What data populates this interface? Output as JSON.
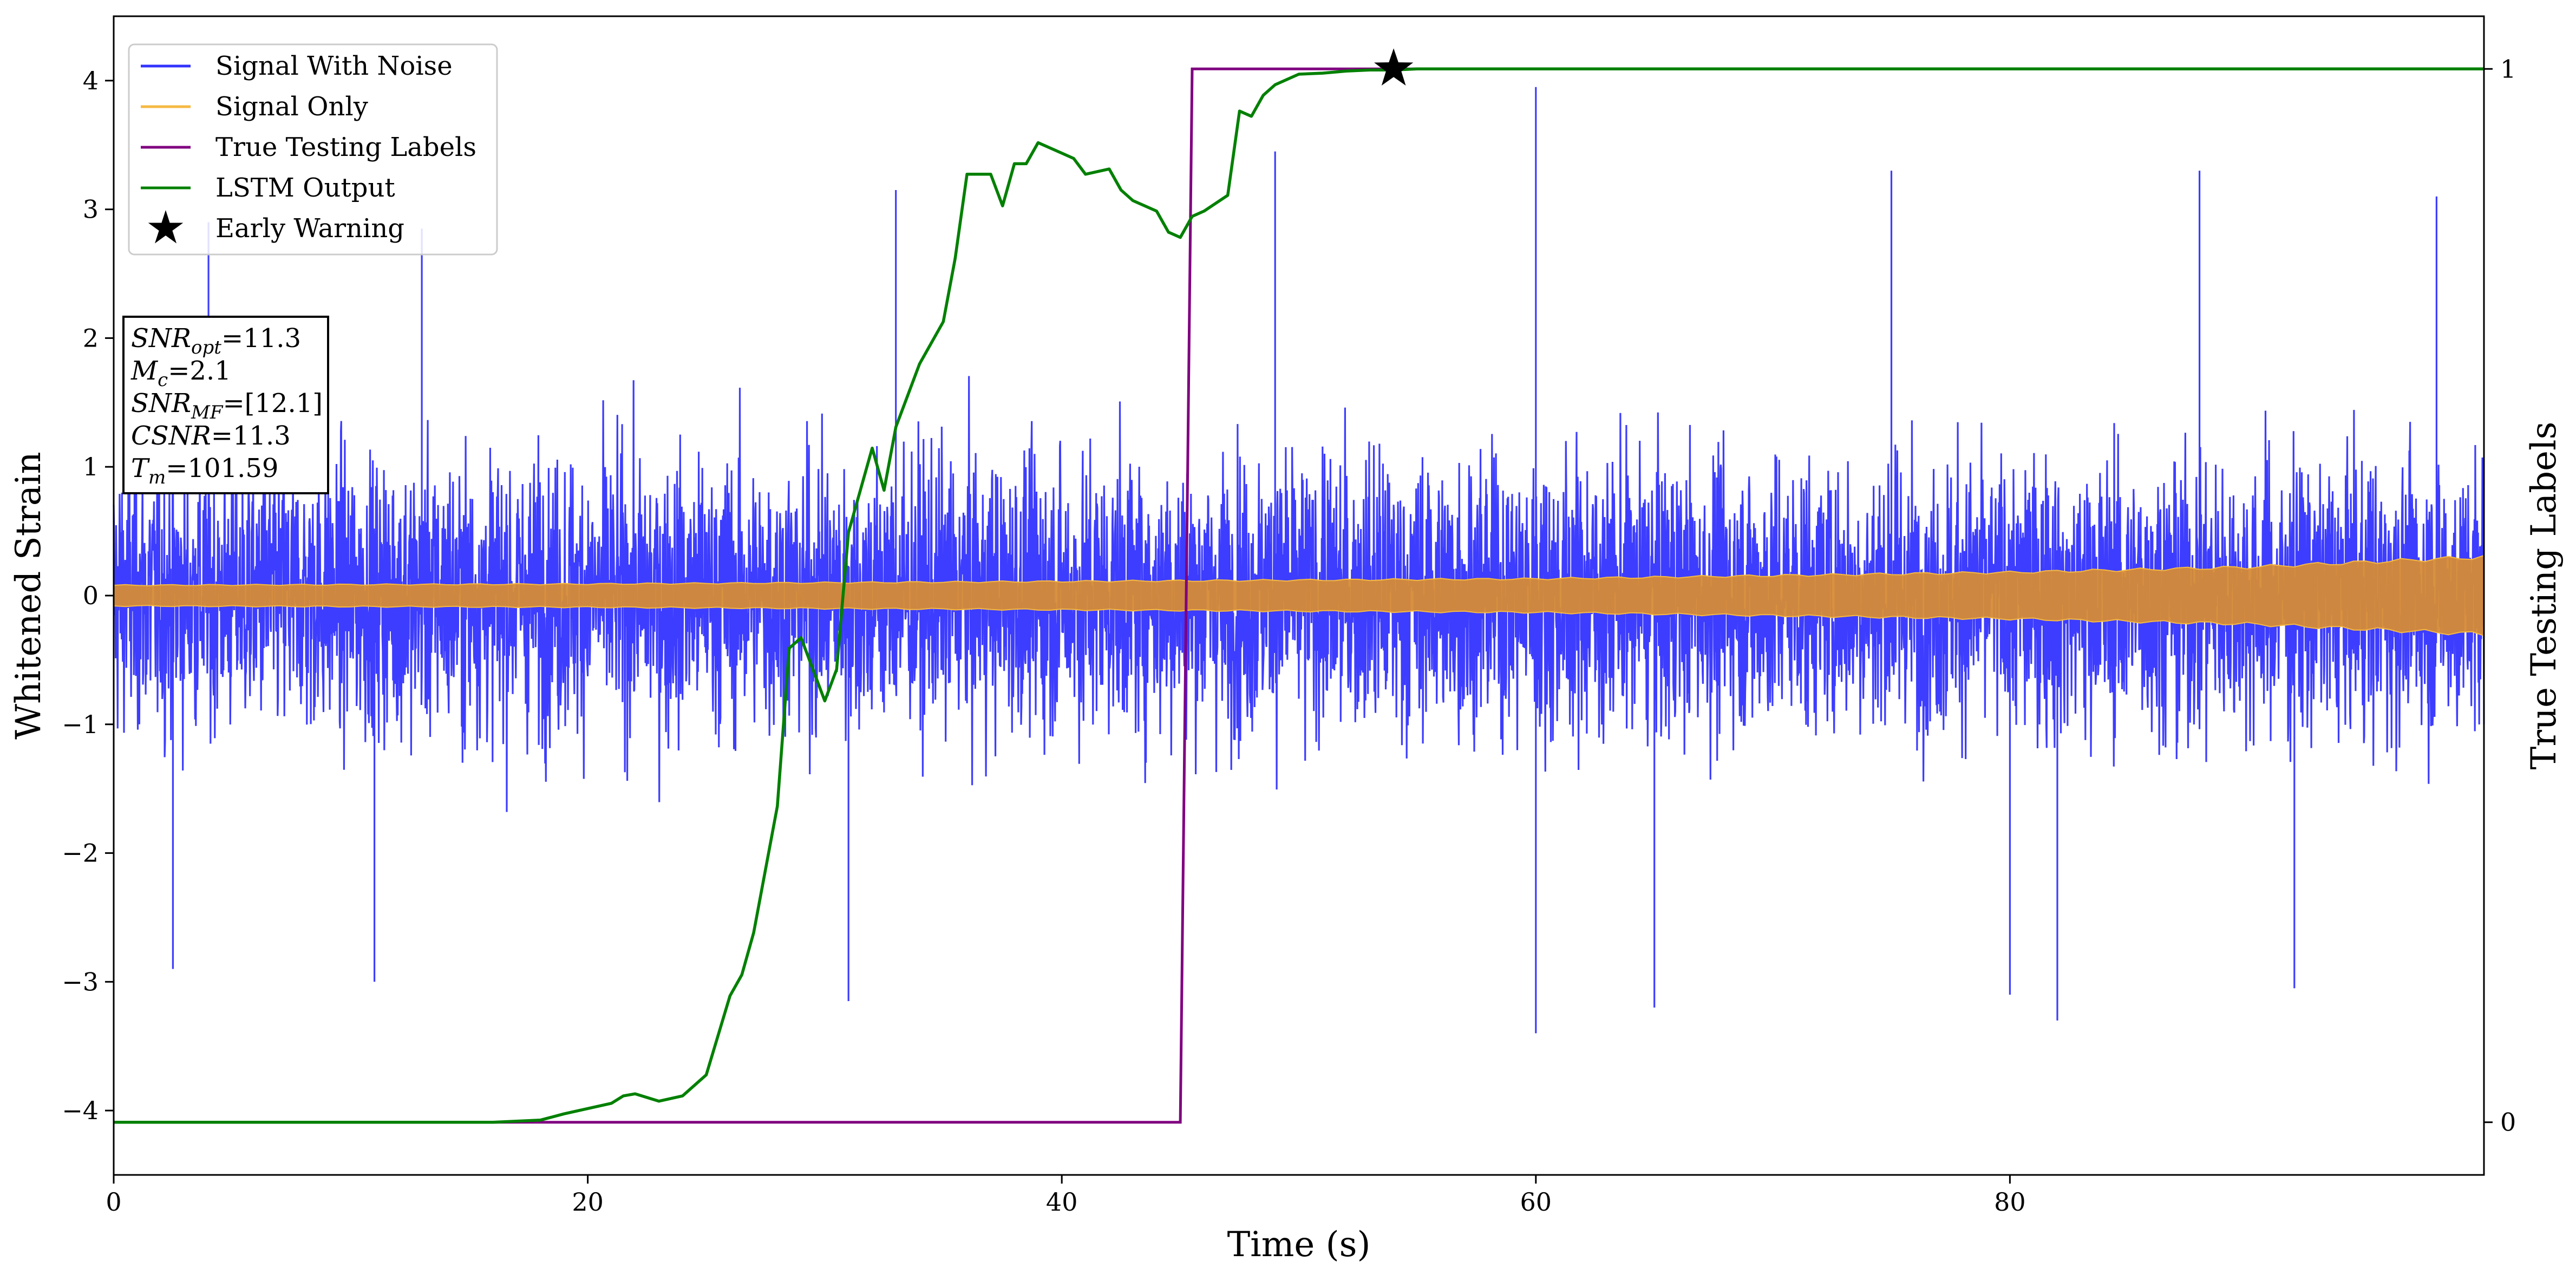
{
  "chart_data": {
    "type": "line",
    "xlabel": "Time (s)",
    "ylabel": "Whitened Strain",
    "ylabel_right": "True Testing Labels",
    "xlim": [
      0,
      100
    ],
    "ylim": [
      -4.5,
      4.5
    ],
    "ylim_right": [
      -0.05,
      1.05
    ],
    "x_ticks": [
      0,
      20,
      40,
      60,
      80
    ],
    "x_tick_labels": [
      "0",
      "20",
      "40",
      "60",
      "80"
    ],
    "y_ticks": [
      -4,
      -3,
      -2,
      -1,
      0,
      1,
      2,
      3,
      4
    ],
    "y_tick_labels": [
      "−4",
      "−3",
      "−2",
      "−1",
      "0",
      "1",
      "2",
      "3",
      "4"
    ],
    "y_right_ticks": [
      0,
      1
    ],
    "y_right_tick_labels": [
      "0",
      "1"
    ],
    "grid": false,
    "legend_position": "top-left",
    "legend": [
      {
        "label": "Signal With Noise",
        "color": "#3333ff",
        "marker": "line"
      },
      {
        "label": "Signal Only",
        "color": "#f5b942",
        "marker": "line"
      },
      {
        "label": "True Testing Labels",
        "color": "#800080",
        "marker": "line"
      },
      {
        "label": "LSTM Output",
        "color": "#008000",
        "marker": "line"
      },
      {
        "label": "Early Warning",
        "color": "#000000",
        "marker": "star"
      }
    ],
    "series": [
      {
        "name": "Signal With Noise",
        "axis": "left",
        "color": "#3333ff",
        "style": "dense noise band, typical envelope about ±1.5, extreme peaks",
        "peaks": [
          {
            "x": 4,
            "y": 2.9
          },
          {
            "x": 13,
            "y": 2.85
          },
          {
            "x": 33,
            "y": 3.15
          },
          {
            "x": 49,
            "y": 3.45
          },
          {
            "x": 60,
            "y": 3.95
          },
          {
            "x": 75,
            "y": 3.3
          },
          {
            "x": 88,
            "y": 3.3
          },
          {
            "x": 98,
            "y": 3.1
          }
        ],
        "troughs": [
          {
            "x": 2.5,
            "y": -2.9
          },
          {
            "x": 11,
            "y": -3.0
          },
          {
            "x": 31,
            "y": -3.15
          },
          {
            "x": 60,
            "y": -3.4
          },
          {
            "x": 65,
            "y": -3.2
          },
          {
            "x": 80,
            "y": -3.1
          },
          {
            "x": 82,
            "y": -3.3
          },
          {
            "x": 92,
            "y": -3.05
          }
        ]
      },
      {
        "name": "Signal Only",
        "axis": "left",
        "color": "#f5b942",
        "style": "chirp envelope growing with time",
        "envelope": {
          "x": [
            0,
            20,
            40,
            60,
            80,
            90,
            100
          ],
          "amplitude": [
            0.08,
            0.09,
            0.11,
            0.13,
            0.18,
            0.22,
            0.3
          ]
        }
      },
      {
        "name": "True Testing Labels",
        "axis": "right",
        "color": "#800080",
        "x": [
          0,
          45,
          45.5,
          100
        ],
        "y": [
          0,
          0,
          1,
          1
        ]
      },
      {
        "name": "LSTM Output",
        "axis": "right",
        "color": "#008000",
        "x": [
          0,
          16,
          18,
          19,
          20,
          21,
          21.5,
          22,
          23,
          24,
          25,
          26,
          26.5,
          27,
          28,
          28.5,
          29,
          29.5,
          30,
          30.5,
          31,
          31.5,
          32,
          32.5,
          33,
          33.5,
          34,
          35,
          35.5,
          36,
          37,
          37.5,
          38,
          38.5,
          39,
          40,
          40.5,
          41,
          42,
          42.5,
          43,
          44,
          44.5,
          45,
          45.5,
          46,
          47,
          47.5,
          48,
          48.5,
          49,
          50,
          51,
          52,
          53,
          54,
          55,
          56,
          100
        ],
        "y": [
          0,
          0,
          0.002,
          0.008,
          0.013,
          0.018,
          0.025,
          0.027,
          0.02,
          0.025,
          0.045,
          0.12,
          0.14,
          0.18,
          0.3,
          0.45,
          0.46,
          0.43,
          0.4,
          0.43,
          0.56,
          0.6,
          0.64,
          0.6,
          0.66,
          0.69,
          0.72,
          0.76,
          0.82,
          0.9,
          0.9,
          0.87,
          0.91,
          0.91,
          0.93,
          0.92,
          0.915,
          0.9,
          0.905,
          0.885,
          0.875,
          0.865,
          0.845,
          0.84,
          0.86,
          0.865,
          0.88,
          0.96,
          0.955,
          0.975,
          0.985,
          0.995,
          0.996,
          0.998,
          0.999,
          0.999,
          1.0,
          1.0,
          1.0
        ]
      }
    ],
    "early_warning": {
      "x": 54,
      "y": 1.0,
      "axis": "right",
      "marker": "star",
      "color": "#000000"
    },
    "annotation_box": [
      {
        "base": "SNR",
        "sub": "opt",
        "value": "=11.3"
      },
      {
        "base": "M",
        "sub": "c",
        "value": "=2.1"
      },
      {
        "base": "SNR",
        "sub": "MF",
        "value": "=[12.1]"
      },
      {
        "base": "CSNR",
        "sub": "",
        "value": "=11.3"
      },
      {
        "base": "T",
        "sub": "m",
        "value": "=101.59"
      }
    ]
  }
}
